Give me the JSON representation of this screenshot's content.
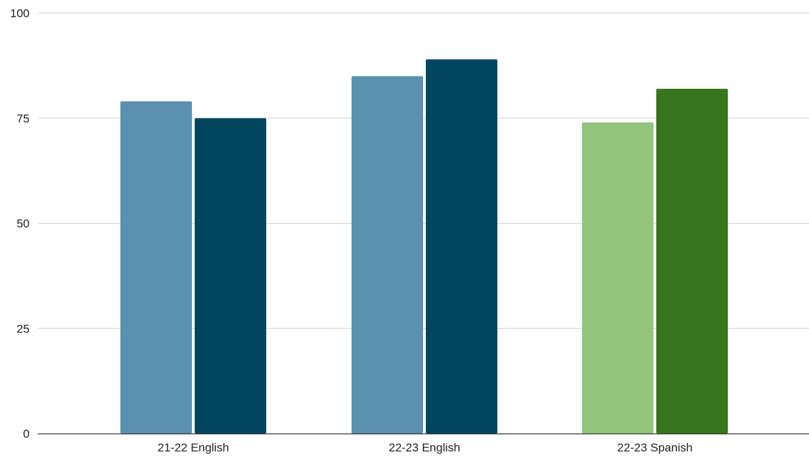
{
  "chart_data": {
    "type": "bar",
    "categories": [
      "21-22 English",
      "22-23 English",
      "22-23 Spanish"
    ],
    "series": [
      {
        "values": [
          79,
          85,
          74
        ],
        "colors": [
          "#5b91b0",
          "#5b91b0",
          "#93c47d"
        ]
      },
      {
        "values": [
          75,
          89,
          82
        ],
        "colors": [
          "#02455f",
          "#02455f",
          "#38761d"
        ]
      }
    ],
    "y_ticks": [
      "0",
      "25",
      "50",
      "75",
      "100"
    ],
    "ylim": [
      0,
      100
    ],
    "grid": true,
    "legend": "none",
    "title": "",
    "xlabel": "",
    "ylabel": ""
  }
}
